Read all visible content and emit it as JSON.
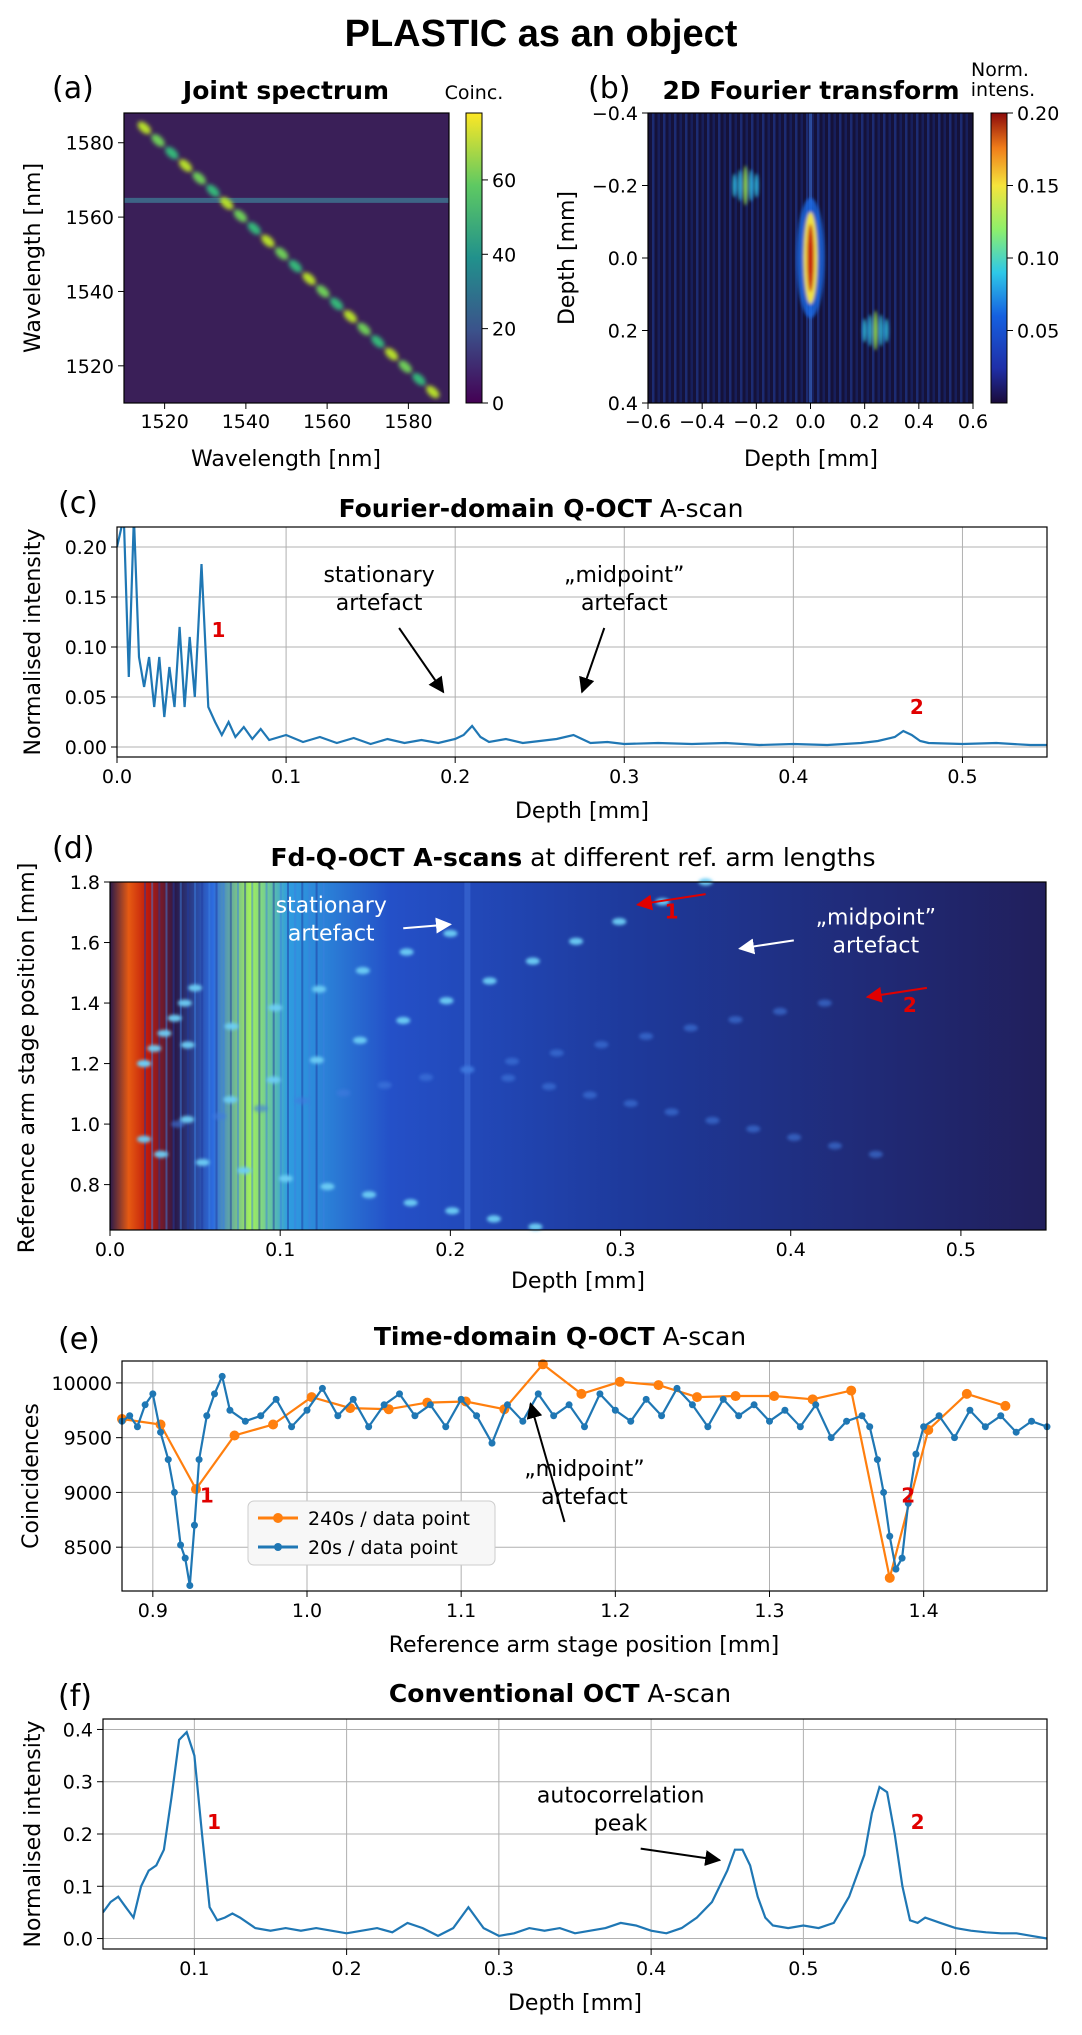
{
  "figure_title": "PLASTIC as an object",
  "chart_data": [
    {
      "id": "a",
      "panel_label": "(a)",
      "type": "heatmap",
      "title": "Joint spectrum",
      "xlabel": "Wavelength [nm]",
      "ylabel": "Wavelength [nm]",
      "xlim": [
        1510,
        1590
      ],
      "ylim": [
        1510,
        1588
      ],
      "xticks": [
        1520,
        1540,
        1560,
        1580
      ],
      "yticks": [
        1520,
        1540,
        1560,
        1580
      ],
      "colormap": "viridis",
      "colorbar": {
        "label": "Coinc.",
        "range": [
          0,
          78
        ],
        "ticks": [
          0,
          20,
          40,
          60
        ]
      },
      "features": {
        "diagonal_band": {
          "from": [
            1515,
            1584
          ],
          "to": [
            1586,
            1513
          ],
          "peak_value": 75,
          "blob_count": 22
        },
        "horizontal_line": {
          "y": 1564.5,
          "value": 25
        }
      }
    },
    {
      "id": "b",
      "panel_label": "(b)",
      "type": "heatmap",
      "title": "2D Fourier transform",
      "xlabel": "Depth [mm]",
      "ylabel": "Depth [mm]",
      "xlim": [
        -0.6,
        0.6
      ],
      "ylim": [
        -0.4,
        0.4
      ],
      "y_inverted": true,
      "xticks": [
        -0.6,
        -0.4,
        -0.2,
        0.0,
        0.2,
        0.4,
        0.6
      ],
      "yticks": [
        -0.4,
        -0.2,
        0.0,
        0.2,
        0.4
      ],
      "colormap": "jet",
      "colorbar": {
        "label": "Norm.\nintens.",
        "label_lines": [
          "Norm.",
          "intens."
        ],
        "range": [
          0,
          0.2
        ],
        "ticks": [
          0.05,
          0.1,
          0.15,
          0.2
        ]
      },
      "features": {
        "central_peak": {
          "x": 0.0,
          "y": 0.0,
          "value": 0.2
        },
        "side_peaks": [
          {
            "x": -0.24,
            "y": -0.2,
            "value": 0.09
          },
          {
            "x": 0.24,
            "y": 0.2,
            "value": 0.09
          }
        ],
        "vertical_line": {
          "x": 0.0,
          "value": 0.03
        }
      }
    },
    {
      "id": "c",
      "panel_label": "(c)",
      "type": "line",
      "title_parts": [
        {
          "text": "Fourier-domain Q-OCT",
          "bold": true
        },
        {
          "text": " A-scan",
          "bold": false
        }
      ],
      "xlabel": "Depth [mm]",
      "ylabel": "Normalised intensity",
      "xlim": [
        0,
        0.55
      ],
      "ylim": [
        -0.01,
        0.22
      ],
      "xticks": [
        0.0,
        0.1,
        0.2,
        0.3,
        0.4,
        0.5
      ],
      "yticks": [
        0.0,
        0.05,
        0.1,
        0.15,
        0.2
      ],
      "grid": true,
      "series": [
        {
          "color": "#1f77b4",
          "x": [
            0.0,
            0.004,
            0.007,
            0.01,
            0.013,
            0.016,
            0.019,
            0.022,
            0.025,
            0.028,
            0.031,
            0.034,
            0.037,
            0.04,
            0.043,
            0.046,
            0.05,
            0.054,
            0.058,
            0.062,
            0.066,
            0.07,
            0.075,
            0.08,
            0.085,
            0.09,
            0.1,
            0.11,
            0.12,
            0.13,
            0.14,
            0.15,
            0.16,
            0.17,
            0.18,
            0.19,
            0.2,
            0.205,
            0.21,
            0.215,
            0.22,
            0.23,
            0.24,
            0.25,
            0.26,
            0.27,
            0.28,
            0.29,
            0.3,
            0.32,
            0.34,
            0.36,
            0.38,
            0.4,
            0.42,
            0.44,
            0.45,
            0.46,
            0.465,
            0.47,
            0.475,
            0.48,
            0.5,
            0.52,
            0.54,
            0.55
          ],
          "y": [
            0.2,
            0.23,
            0.07,
            0.23,
            0.09,
            0.06,
            0.09,
            0.04,
            0.09,
            0.03,
            0.08,
            0.04,
            0.12,
            0.04,
            0.11,
            0.05,
            0.183,
            0.04,
            0.025,
            0.012,
            0.025,
            0.01,
            0.02,
            0.008,
            0.018,
            0.007,
            0.012,
            0.005,
            0.01,
            0.004,
            0.009,
            0.003,
            0.008,
            0.004,
            0.007,
            0.004,
            0.008,
            0.012,
            0.021,
            0.01,
            0.005,
            0.008,
            0.004,
            0.006,
            0.008,
            0.012,
            0.004,
            0.005,
            0.003,
            0.004,
            0.003,
            0.004,
            0.002,
            0.003,
            0.002,
            0.004,
            0.006,
            0.01,
            0.016,
            0.012,
            0.006,
            0.004,
            0.003,
            0.004,
            0.002,
            0.002
          ]
        }
      ],
      "annotations": [
        {
          "lines": [
            "stationary",
            "artefact"
          ],
          "text_at": [
            0.155,
            0.165
          ],
          "arrow_to": [
            0.193,
            0.055
          ]
        },
        {
          "lines": [
            "„midpoint”",
            "artefact"
          ],
          "text_at": [
            0.3,
            0.165
          ],
          "arrow_to": [
            0.275,
            0.055
          ]
        }
      ],
      "markers": [
        {
          "text": "1",
          "at": [
            0.06,
            0.11
          ]
        },
        {
          "text": "2",
          "at": [
            0.473,
            0.033
          ]
        }
      ]
    },
    {
      "id": "d",
      "panel_label": "(d)",
      "type": "heatmap",
      "title_parts": [
        {
          "text": "Fd-Q-OCT A-scans",
          "bold": true
        },
        {
          "text": " at different ref. arm lengths",
          "bold": false
        }
      ],
      "xlabel": "Depth [mm]",
      "ylabel": "Reference arm stage position [mm]",
      "xlim": [
        0,
        0.55
      ],
      "ylim": [
        0.65,
        1.8
      ],
      "xticks": [
        0.0,
        0.1,
        0.2,
        0.3,
        0.4,
        0.5
      ],
      "yticks": [
        0.8,
        1.0,
        1.2,
        1.4,
        1.6,
        1.8
      ],
      "colormap": "jet",
      "features": {
        "strong_columns": [
          {
            "x": 0.002,
            "value": 1.0
          },
          {
            "x": 0.012,
            "value": 0.6
          }
        ],
        "stationary_column": {
          "x": 0.21
        },
        "diagonal_streaks": [
          {
            "from": [
              0.02,
              0.95
            ],
            "to": [
              0.35,
              1.8
            ]
          },
          {
            "from": [
              0.03,
              0.9
            ],
            "to": [
              0.25,
              0.66
            ]
          },
          {
            "from": [
              0.02,
              1.2
            ],
            "to": [
              0.2,
              1.63
            ]
          },
          {
            "from": [
              0.02,
              1.2
            ],
            "to": [
              0.05,
              1.45
            ]
          },
          {
            "from": [
              0.04,
              1.0
            ],
            "to": [
              0.21,
              1.18
            ]
          },
          {
            "from": [
              0.21,
              1.18
            ],
            "to": [
              0.42,
              1.4
            ]
          },
          {
            "from": [
              0.21,
              1.18
            ],
            "to": [
              0.45,
              0.9
            ]
          }
        ]
      },
      "annotations": [
        {
          "lines": [
            "stationary",
            "artefact"
          ],
          "text_at": [
            0.13,
            1.7
          ],
          "arrow_to": [
            0.2,
            1.66
          ],
          "color": "#ffffff"
        },
        {
          "lines": [
            "„midpoint”",
            "artefact"
          ],
          "text_at": [
            0.45,
            1.66
          ],
          "arrow_to": [
            0.37,
            1.58
          ],
          "color": "#ffffff"
        }
      ],
      "markers": [
        {
          "text": "1",
          "at": [
            0.33,
            1.68
          ],
          "arrow_from": [
            0.35,
            1.76
          ],
          "arrow_to": [
            0.31,
            1.725
          ]
        },
        {
          "text": "2",
          "at": [
            0.47,
            1.37
          ],
          "arrow_from": [
            0.48,
            1.45
          ],
          "arrow_to": [
            0.445,
            1.42
          ]
        }
      ]
    },
    {
      "id": "e",
      "panel_label": "(e)",
      "type": "line",
      "title_parts": [
        {
          "text": "Time-domain Q-OCT",
          "bold": true
        },
        {
          "text": " A-scan",
          "bold": false
        }
      ],
      "xlabel": "Reference arm stage position [mm]",
      "ylabel": "Coincidences",
      "xlim": [
        0.88,
        1.48
      ],
      "ylim": [
        8100,
        10200
      ],
      "xticks": [
        0.9,
        1.0,
        1.1,
        1.2,
        1.3,
        1.4
      ],
      "yticks": [
        8500,
        9000,
        9500,
        10000
      ],
      "grid": true,
      "legend": "lower-left",
      "series": [
        {
          "name": "240s / data point",
          "color": "#ff7f0e",
          "x": [
            0.88,
            0.905,
            0.928,
            0.953,
            0.978,
            1.003,
            1.028,
            1.053,
            1.078,
            1.103,
            1.128,
            1.153,
            1.178,
            1.203,
            1.228,
            1.253,
            1.278,
            1.303,
            1.328,
            1.353,
            1.378,
            1.403,
            1.428,
            1.453
          ],
          "y": [
            9670,
            9620,
            9030,
            9520,
            9620,
            9870,
            9770,
            9760,
            9820,
            9830,
            9760,
            10170,
            9900,
            10010,
            9980,
            9870,
            9880,
            9880,
            9850,
            9930,
            8220,
            9570,
            9900,
            9790
          ]
        },
        {
          "name": "20s / data point",
          "color": "#1f77b4",
          "x": [
            0.88,
            0.885,
            0.89,
            0.895,
            0.9,
            0.905,
            0.91,
            0.914,
            0.918,
            0.921,
            0.924,
            0.927,
            0.93,
            0.935,
            0.94,
            0.945,
            0.95,
            0.96,
            0.97,
            0.98,
            0.99,
            1.0,
            1.01,
            1.02,
            1.03,
            1.04,
            1.05,
            1.06,
            1.07,
            1.08,
            1.09,
            1.1,
            1.11,
            1.12,
            1.13,
            1.14,
            1.15,
            1.16,
            1.17,
            1.18,
            1.19,
            1.2,
            1.21,
            1.22,
            1.23,
            1.24,
            1.25,
            1.26,
            1.27,
            1.28,
            1.29,
            1.3,
            1.31,
            1.32,
            1.33,
            1.34,
            1.35,
            1.36,
            1.365,
            1.37,
            1.374,
            1.378,
            1.382,
            1.386,
            1.39,
            1.395,
            1.4,
            1.41,
            1.42,
            1.43,
            1.44,
            1.45,
            1.46,
            1.47,
            1.48
          ],
          "y": [
            9650,
            9700,
            9600,
            9800,
            9900,
            9550,
            9300,
            9000,
            8520,
            8400,
            8150,
            8700,
            9300,
            9700,
            9900,
            10060,
            9750,
            9650,
            9700,
            9850,
            9600,
            9750,
            9950,
            9700,
            9850,
            9600,
            9800,
            9900,
            9700,
            9800,
            9600,
            9850,
            9700,
            9450,
            9800,
            9650,
            9900,
            9700,
            9800,
            9600,
            9900,
            9750,
            9650,
            9850,
            9700,
            9950,
            9800,
            9600,
            9850,
            9700,
            9800,
            9650,
            9750,
            9600,
            9800,
            9500,
            9650,
            9700,
            9600,
            9300,
            9000,
            8600,
            8300,
            8400,
            8900,
            9350,
            9600,
            9700,
            9500,
            9750,
            9600,
            9700,
            9550,
            9650,
            9600
          ]
        }
      ],
      "annotations": [
        {
          "lines": [
            "„midpoint”",
            "artefact"
          ],
          "text_at": [
            1.18,
            9150
          ],
          "arrow_to": [
            1.145,
            9810
          ]
        }
      ],
      "markers": [
        {
          "text": "1",
          "at": [
            0.935,
            8910
          ]
        },
        {
          "text": "2",
          "at": [
            1.39,
            8910
          ]
        }
      ]
    },
    {
      "id": "f",
      "panel_label": "(f)",
      "type": "line",
      "title_parts": [
        {
          "text": "Conventional OCT",
          "bold": true
        },
        {
          "text": " A-scan",
          "bold": false
        }
      ],
      "xlabel": "Depth [mm]",
      "ylabel": "Normalised intensity",
      "xlim": [
        0.04,
        0.66
      ],
      "ylim": [
        -0.02,
        0.42
      ],
      "xticks": [
        0.1,
        0.2,
        0.3,
        0.4,
        0.5,
        0.6
      ],
      "yticks": [
        0.0,
        0.1,
        0.2,
        0.3,
        0.4
      ],
      "grid": true,
      "series": [
        {
          "color": "#1f77b4",
          "x": [
            0.04,
            0.045,
            0.05,
            0.055,
            0.06,
            0.065,
            0.07,
            0.075,
            0.08,
            0.085,
            0.09,
            0.095,
            0.1,
            0.105,
            0.11,
            0.115,
            0.12,
            0.125,
            0.13,
            0.14,
            0.15,
            0.16,
            0.17,
            0.18,
            0.19,
            0.2,
            0.21,
            0.22,
            0.23,
            0.24,
            0.25,
            0.26,
            0.27,
            0.28,
            0.29,
            0.3,
            0.31,
            0.32,
            0.33,
            0.34,
            0.35,
            0.36,
            0.37,
            0.38,
            0.39,
            0.4,
            0.41,
            0.42,
            0.43,
            0.44,
            0.45,
            0.455,
            0.46,
            0.465,
            0.47,
            0.475,
            0.48,
            0.49,
            0.5,
            0.51,
            0.52,
            0.53,
            0.54,
            0.545,
            0.55,
            0.555,
            0.56,
            0.565,
            0.57,
            0.575,
            0.58,
            0.59,
            0.6,
            0.61,
            0.62,
            0.63,
            0.64,
            0.65,
            0.66
          ],
          "y": [
            0.05,
            0.07,
            0.08,
            0.06,
            0.04,
            0.1,
            0.13,
            0.14,
            0.17,
            0.27,
            0.38,
            0.395,
            0.35,
            0.2,
            0.06,
            0.035,
            0.04,
            0.048,
            0.04,
            0.02,
            0.015,
            0.02,
            0.015,
            0.02,
            0.015,
            0.01,
            0.015,
            0.02,
            0.012,
            0.03,
            0.02,
            0.005,
            0.02,
            0.06,
            0.02,
            0.005,
            0.01,
            0.02,
            0.015,
            0.02,
            0.01,
            0.015,
            0.02,
            0.03,
            0.025,
            0.015,
            0.01,
            0.02,
            0.04,
            0.07,
            0.13,
            0.17,
            0.17,
            0.14,
            0.08,
            0.04,
            0.025,
            0.02,
            0.025,
            0.02,
            0.03,
            0.08,
            0.16,
            0.24,
            0.29,
            0.28,
            0.2,
            0.1,
            0.035,
            0.03,
            0.04,
            0.03,
            0.02,
            0.015,
            0.012,
            0.01,
            0.01,
            0.005,
            0.0
          ]
        }
      ],
      "annotations": [
        {
          "lines": [
            "autocorrelation",
            "peak"
          ],
          "text_at": [
            0.38,
            0.26
          ],
          "arrow_to": [
            0.445,
            0.15
          ]
        }
      ],
      "markers": [
        {
          "text": "1",
          "at": [
            0.113,
            0.21
          ]
        },
        {
          "text": "2",
          "at": [
            0.575,
            0.21
          ]
        }
      ]
    }
  ]
}
